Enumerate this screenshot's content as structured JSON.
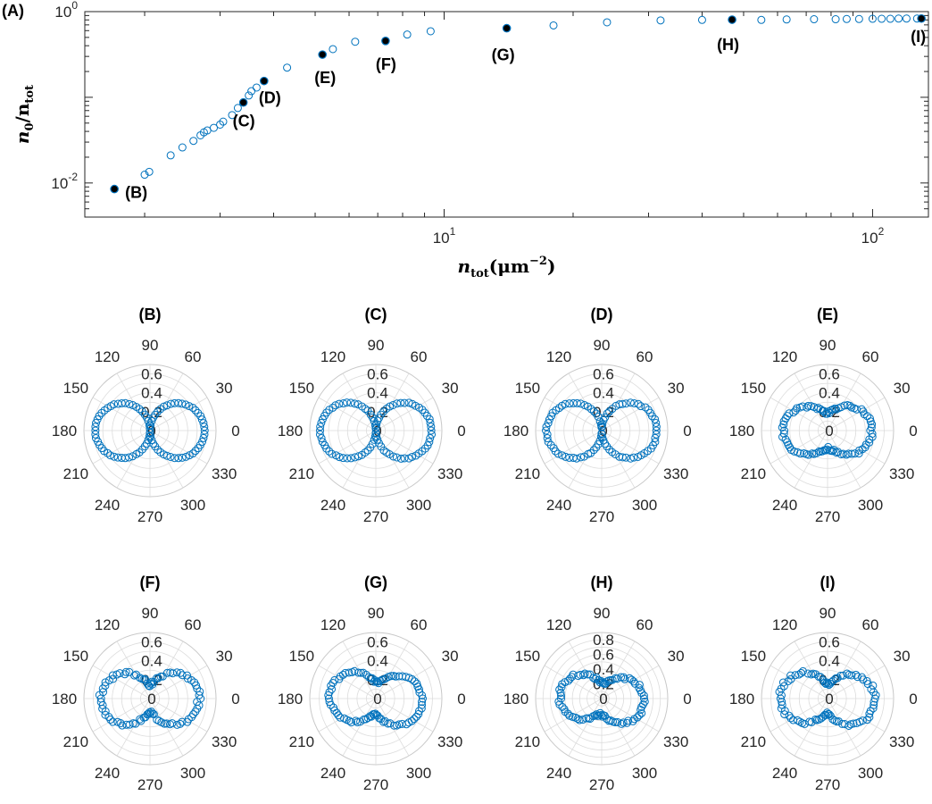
{
  "figure_label": "(A)",
  "chart_data": [
    {
      "panel": "(A)",
      "type": "scatter",
      "x_scale": "log",
      "y_scale": "log",
      "xlim": [
        1.45,
        135
      ],
      "ylim": [
        0.004,
        1.0
      ],
      "x_ticks": [
        {
          "value": 10,
          "base": "10",
          "exp": "1"
        },
        {
          "value": 100,
          "base": "10",
          "exp": "2"
        }
      ],
      "y_ticks": [
        {
          "value": 0.01,
          "base": "10",
          "exp": "-2"
        },
        {
          "value": 1,
          "base": "10",
          "exp": "0"
        }
      ],
      "xlabel": {
        "base": "n",
        "sub": "tot",
        "unit": "(μm",
        "unit_exp": "−2",
        "unit_close": ")"
      },
      "ylabel": {
        "num": "n",
        "num_sub": "0",
        "den": "n",
        "den_sub": "tot"
      },
      "marker_color": "#0072BD",
      "x": [
        2.0,
        2.05,
        2.3,
        2.45,
        2.6,
        2.7,
        2.75,
        2.8,
        2.9,
        3.0,
        3.05,
        3.2,
        3.3,
        3.5,
        3.55,
        3.65,
        4.3,
        5.5,
        6.2,
        8.2,
        9.3,
        18.0,
        24.0,
        32.0,
        40.0,
        55.0,
        63.0,
        73.0,
        82.0,
        87.0,
        93.0,
        100.0,
        105.0,
        110.0,
        115.0,
        120.0,
        127.0
      ],
      "y": [
        0.0125,
        0.0135,
        0.021,
        0.026,
        0.031,
        0.036,
        0.039,
        0.041,
        0.044,
        0.048,
        0.052,
        0.062,
        0.075,
        0.105,
        0.118,
        0.13,
        0.222,
        0.365,
        0.445,
        0.54,
        0.59,
        0.69,
        0.75,
        0.79,
        0.8,
        0.8,
        0.81,
        0.815,
        0.815,
        0.82,
        0.82,
        0.825,
        0.825,
        0.825,
        0.83,
        0.83,
        0.83
      ],
      "highlighted": [
        {
          "label": "(B)",
          "x": 1.7,
          "y": 0.0085
        },
        {
          "label": "(C)",
          "x": 3.4,
          "y": 0.087
        },
        {
          "label": "(D)",
          "x": 3.8,
          "y": 0.155
        },
        {
          "label": "(E)",
          "x": 5.2,
          "y": 0.315
        },
        {
          "label": "(F)",
          "x": 7.3,
          "y": 0.455
        },
        {
          "label": "(G)",
          "x": 14.0,
          "y": 0.64
        },
        {
          "label": "(H)",
          "x": 47.0,
          "y": 0.805
        },
        {
          "label": "(I)",
          "x": 130.0,
          "y": 0.83
        }
      ]
    },
    {
      "type": "polar_grid",
      "theta_tick_labels": [
        "0",
        "30",
        "60",
        "90",
        "120",
        "150",
        "180",
        "210",
        "240",
        "270",
        "300",
        "330"
      ],
      "marker_color": "#0072BD",
      "panels": [
        {
          "label": "(B)",
          "rmax": 0.7,
          "r_ticks": [
            "0",
            "0.2",
            "0.4",
            "0.6"
          ],
          "a1": 0.58,
          "phi1": 0,
          "a2": 0.0,
          "phi2": 0,
          "noise": 0.004
        },
        {
          "label": "(C)",
          "rmax": 0.7,
          "r_ticks": [
            "0",
            "0.2",
            "0.4",
            "0.6"
          ],
          "a1": 0.59,
          "phi1": 0,
          "a2": 0.01,
          "phi2": 0,
          "noise": 0.006
        },
        {
          "label": "(D)",
          "rmax": 0.7,
          "r_ticks": [
            "0",
            "0.2",
            "0.4",
            "0.6"
          ],
          "a1": 0.585,
          "phi1": 0,
          "a2": 0.03,
          "phi2": 0,
          "noise": 0.008
        },
        {
          "label": "(E)",
          "rmax": 0.7,
          "r_ticks": [
            "0",
            "0.2",
            "0.4",
            "0.6"
          ],
          "a1": 0.47,
          "phi1": 0,
          "a2": 0.19,
          "phi2": 0,
          "noise": 0.018
        },
        {
          "label": "(F)",
          "rmax": 0.7,
          "r_ticks": [
            "0",
            "0.2",
            "0.4",
            "0.6"
          ],
          "a1": 0.52,
          "phi1": 0,
          "a2": 0.15,
          "phi2": 0,
          "noise": 0.022
        },
        {
          "label": "(G)",
          "rmax": 0.7,
          "r_ticks": [
            "0",
            "0.2",
            "0.4",
            "0.6"
          ],
          "a1": 0.48,
          "phi1": 0,
          "a2": 0.2,
          "phi2": 28,
          "noise": 0.015
        },
        {
          "label": "(H)",
          "rmax": 0.9,
          "r_ticks": [
            "0",
            "0.2",
            "0.4",
            "0.6",
            "0.8"
          ],
          "a1": 0.56,
          "phi1": 0,
          "a2": 0.25,
          "phi2": 28,
          "noise": 0.022
        },
        {
          "label": "(I)",
          "rmax": 0.7,
          "r_ticks": [
            "0",
            "0.2",
            "0.4",
            "0.6"
          ],
          "a1": 0.5,
          "phi1": 0,
          "a2": 0.17,
          "phi2": 20,
          "noise": 0.02
        }
      ]
    }
  ]
}
